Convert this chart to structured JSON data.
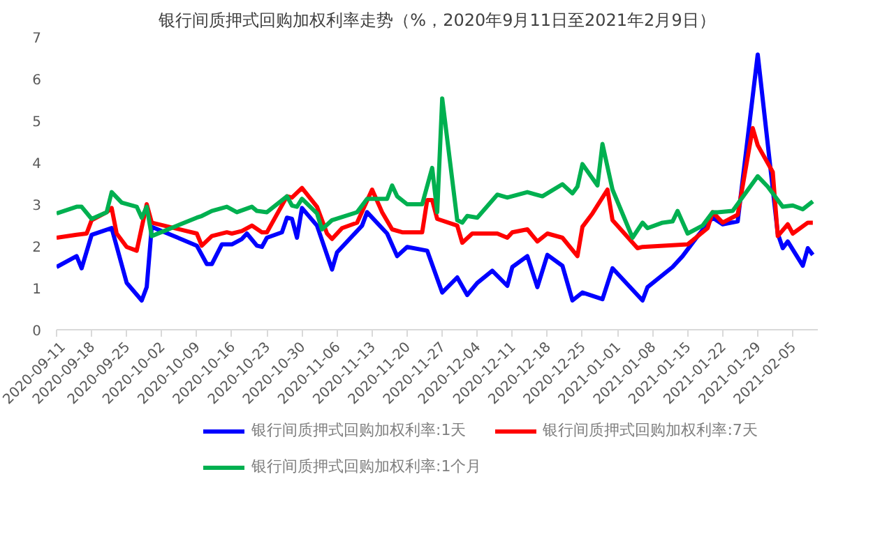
{
  "chart_data": {
    "type": "line",
    "title": "银行间质押式回购加权利率走势（%，2020年9月11日至2021年2月9日）",
    "xlim": [
      "2020-09-11",
      "2021-02-10"
    ],
    "xticks": [
      "2020-09-11",
      "2020-09-18",
      "2020-09-25",
      "2020-10-02",
      "2020-10-09",
      "2020-10-16",
      "2020-10-23",
      "2020-10-30",
      "2020-11-06",
      "2020-11-13",
      "2020-11-20",
      "2020-11-27",
      "2020-12-04",
      "2020-12-11",
      "2020-12-18",
      "2020-12-25",
      "2021-01-01",
      "2021-01-08",
      "2021-01-15",
      "2021-01-22",
      "2021-01-29",
      "2021-02-05"
    ],
    "ylim": [
      0,
      7
    ],
    "yticks": [
      0,
      1,
      2,
      3,
      4,
      5,
      6,
      7
    ],
    "grid": false,
    "legend": "bottom",
    "marker": "none",
    "line_style": "solid",
    "series": [
      {
        "name": "银行间质押式回购加权利率:1天",
        "color": "#0000ff",
        "x": [
          "2020-09-11",
          "2020-09-15",
          "2020-09-16",
          "2020-09-18",
          "2020-09-22",
          "2020-09-25",
          "2020-09-28",
          "2020-09-29",
          "2020-09-30",
          "2020-10-09",
          "2020-10-11",
          "2020-10-12",
          "2020-10-14",
          "2020-10-16",
          "2020-10-18",
          "2020-10-19",
          "2020-10-21",
          "2020-10-22",
          "2020-10-23",
          "2020-10-26",
          "2020-10-27",
          "2020-10-28",
          "2020-10-29",
          "2020-10-30",
          "2020-11-02",
          "2020-11-05",
          "2020-11-06",
          "2020-11-11",
          "2020-11-12",
          "2020-11-16",
          "2020-11-18",
          "2020-11-20",
          "2020-11-24",
          "2020-11-27",
          "2020-11-30",
          "2020-12-02",
          "2020-12-04",
          "2020-12-07",
          "2020-12-10",
          "2020-12-11",
          "2020-12-14",
          "2020-12-16",
          "2020-12-18",
          "2020-12-21",
          "2020-12-23",
          "2020-12-25",
          "2020-12-29",
          "2020-12-31",
          "2021-01-06",
          "2021-01-07",
          "2021-01-12",
          "2021-01-14",
          "2021-01-17",
          "2021-01-20",
          "2021-01-22",
          "2021-01-25",
          "2021-01-29",
          "2021-02-02",
          "2021-02-03",
          "2021-02-04",
          "2021-02-07",
          "2021-02-08",
          "2021-02-09"
        ],
        "values": [
          1.5,
          1.76,
          1.47,
          2.27,
          2.43,
          1.12,
          0.7,
          1.02,
          2.46,
          2.01,
          1.57,
          1.57,
          2.04,
          2.04,
          2.17,
          2.3,
          2.01,
          1.98,
          2.2,
          2.33,
          2.68,
          2.65,
          2.2,
          2.91,
          2.49,
          1.44,
          1.85,
          2.49,
          2.81,
          2.3,
          1.76,
          1.98,
          1.89,
          0.89,
          1.25,
          0.83,
          1.12,
          1.41,
          1.05,
          1.5,
          1.76,
          1.02,
          1.79,
          1.53,
          0.7,
          0.89,
          0.73,
          1.47,
          0.7,
          1.02,
          1.5,
          1.76,
          2.24,
          2.68,
          2.52,
          2.59,
          6.58,
          2.3,
          1.95,
          2.11,
          1.53,
          1.95,
          1.79
        ]
      },
      {
        "name": "银行间质押式回购加权利率:7天",
        "color": "#ff0000",
        "x": [
          "2020-09-11",
          "2020-09-15",
          "2020-09-17",
          "2020-09-18",
          "2020-09-21",
          "2020-09-22",
          "2020-09-23",
          "2020-09-25",
          "2020-09-27",
          "2020-09-29",
          "2020-09-30",
          "2020-10-09",
          "2020-10-10",
          "2020-10-12",
          "2020-10-15",
          "2020-10-16",
          "2020-10-18",
          "2020-10-20",
          "2020-10-22",
          "2020-10-23",
          "2020-10-27",
          "2020-10-28",
          "2020-10-30",
          "2020-11-02",
          "2020-11-04",
          "2020-11-05",
          "2020-11-07",
          "2020-11-10",
          "2020-11-13",
          "2020-11-15",
          "2020-11-17",
          "2020-11-19",
          "2020-11-23",
          "2020-11-24",
          "2020-11-25",
          "2020-11-26",
          "2020-11-30",
          "2020-12-01",
          "2020-12-03",
          "2020-12-08",
          "2020-12-10",
          "2020-12-11",
          "2020-12-14",
          "2020-12-16",
          "2020-12-18",
          "2020-12-21",
          "2020-12-24",
          "2020-12-25",
          "2020-12-27",
          "2020-12-30",
          "2020-12-31",
          "2021-01-05",
          "2021-01-06",
          "2021-01-15",
          "2021-01-19",
          "2021-01-20",
          "2021-01-22",
          "2021-01-25",
          "2021-01-28",
          "2021-01-29",
          "2021-02-01",
          "2021-02-02",
          "2021-02-04",
          "2021-02-05",
          "2021-02-08",
          "2021-02-09"
        ],
        "values": [
          2.2,
          2.27,
          2.3,
          2.62,
          2.81,
          2.91,
          2.3,
          1.98,
          1.89,
          3.0,
          2.56,
          2.3,
          2.01,
          2.24,
          2.33,
          2.3,
          2.36,
          2.49,
          2.33,
          2.33,
          3.19,
          3.16,
          3.39,
          2.94,
          2.3,
          2.17,
          2.43,
          2.56,
          3.35,
          2.81,
          2.4,
          2.33,
          2.33,
          3.1,
          3.1,
          2.65,
          2.49,
          2.08,
          2.3,
          2.3,
          2.2,
          2.33,
          2.4,
          2.11,
          2.3,
          2.2,
          1.76,
          2.46,
          2.78,
          3.35,
          2.62,
          1.95,
          1.98,
          2.04,
          2.43,
          2.81,
          2.56,
          2.75,
          4.82,
          4.41,
          3.77,
          2.24,
          2.52,
          2.3,
          2.56,
          2.56
        ]
      },
      {
        "name": "银行间质押式回购加权利率:1个月",
        "color": "#00b050",
        "x": [
          "2020-09-11",
          "2020-09-15",
          "2020-09-16",
          "2020-09-18",
          "2020-09-21",
          "2020-09-22",
          "2020-09-24",
          "2020-09-27",
          "2020-09-28",
          "2020-09-29",
          "2020-09-30",
          "2020-10-09",
          "2020-10-10",
          "2020-10-12",
          "2020-10-15",
          "2020-10-17",
          "2020-10-20",
          "2020-10-21",
          "2020-10-23",
          "2020-10-27",
          "2020-10-28",
          "2020-10-29",
          "2020-10-30",
          "2020-11-02",
          "2020-11-03",
          "2020-11-05",
          "2020-11-10",
          "2020-11-12",
          "2020-11-16",
          "2020-11-17",
          "2020-11-18",
          "2020-11-20",
          "2020-11-23",
          "2020-11-25",
          "2020-11-26",
          "2020-11-27",
          "2020-11-30",
          "2020-12-01",
          "2020-12-02",
          "2020-12-04",
          "2020-12-08",
          "2020-12-10",
          "2020-12-14",
          "2020-12-17",
          "2020-12-21",
          "2020-12-23",
          "2020-12-24",
          "2020-12-25",
          "2020-12-28",
          "2020-12-29",
          "2020-12-31",
          "2021-01-04",
          "2021-01-06",
          "2021-01-07",
          "2021-01-10",
          "2021-01-12",
          "2021-01-13",
          "2021-01-15",
          "2021-01-18",
          "2021-01-20",
          "2021-01-21",
          "2021-01-24",
          "2021-01-29",
          "2021-01-31",
          "2021-02-03",
          "2021-02-05",
          "2021-02-07",
          "2021-02-09"
        ],
        "values": [
          2.78,
          2.94,
          2.94,
          2.65,
          2.81,
          3.29,
          3.04,
          2.94,
          2.68,
          2.94,
          2.24,
          2.68,
          2.72,
          2.84,
          2.94,
          2.81,
          2.94,
          2.84,
          2.81,
          3.19,
          2.97,
          2.94,
          3.13,
          2.78,
          2.4,
          2.62,
          2.81,
          3.13,
          3.13,
          3.45,
          3.19,
          3.0,
          3.0,
          3.87,
          2.81,
          5.53,
          2.62,
          2.56,
          2.72,
          2.68,
          3.23,
          3.16,
          3.29,
          3.19,
          3.48,
          3.26,
          3.42,
          3.96,
          3.45,
          4.44,
          3.35,
          2.2,
          2.56,
          2.43,
          2.56,
          2.59,
          2.84,
          2.3,
          2.49,
          2.81,
          2.81,
          2.84,
          3.67,
          3.42,
          2.94,
          2.97,
          2.88,
          3.07
        ]
      }
    ]
  }
}
